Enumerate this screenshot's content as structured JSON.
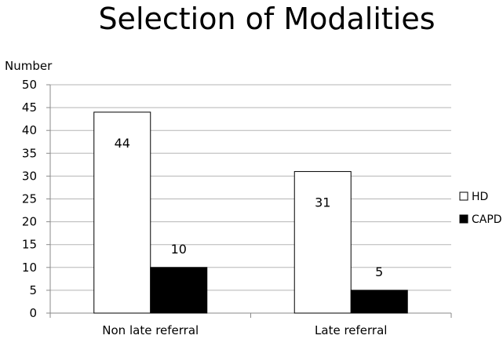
{
  "chart_data": {
    "type": "bar",
    "title": "Selection of Modalities",
    "ylabel": "Number",
    "xlabel": "",
    "ylim": [
      0,
      50
    ],
    "yticks": [
      0,
      5,
      10,
      15,
      20,
      25,
      30,
      35,
      40,
      45,
      50
    ],
    "grid": true,
    "legend_position": "right",
    "categories": [
      "Non late referral",
      "Late referral"
    ],
    "series": [
      {
        "name": "HD",
        "values": [
          44,
          31
        ],
        "color": "#ffffff",
        "stroke": "#000000"
      },
      {
        "name": "CAPD",
        "values": [
          10,
          5
        ],
        "color": "#000000",
        "stroke": "#000000"
      }
    ]
  }
}
